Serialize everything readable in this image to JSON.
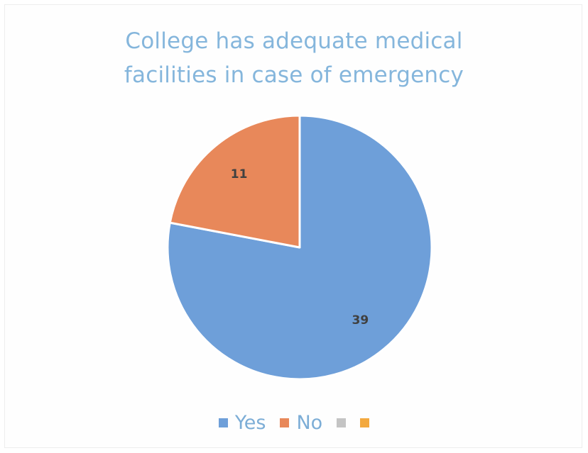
{
  "chart_data": {
    "type": "pie",
    "title_lines": [
      "College has adequate medical",
      "facilities in case of emergency"
    ],
    "slices": [
      {
        "label": "Yes",
        "value": 39,
        "color": "#6e9fd9"
      },
      {
        "label": "No",
        "value": 11,
        "color": "#e8885a"
      }
    ],
    "legend": [
      {
        "label": "Yes",
        "color": "#6e9fd9"
      },
      {
        "label": "No",
        "color": "#e8885a"
      },
      {
        "label": "",
        "color": "#c4c4c4"
      },
      {
        "label": "",
        "color": "#f3a93f"
      }
    ],
    "legend_position": "bottom",
    "data_labels": true
  }
}
